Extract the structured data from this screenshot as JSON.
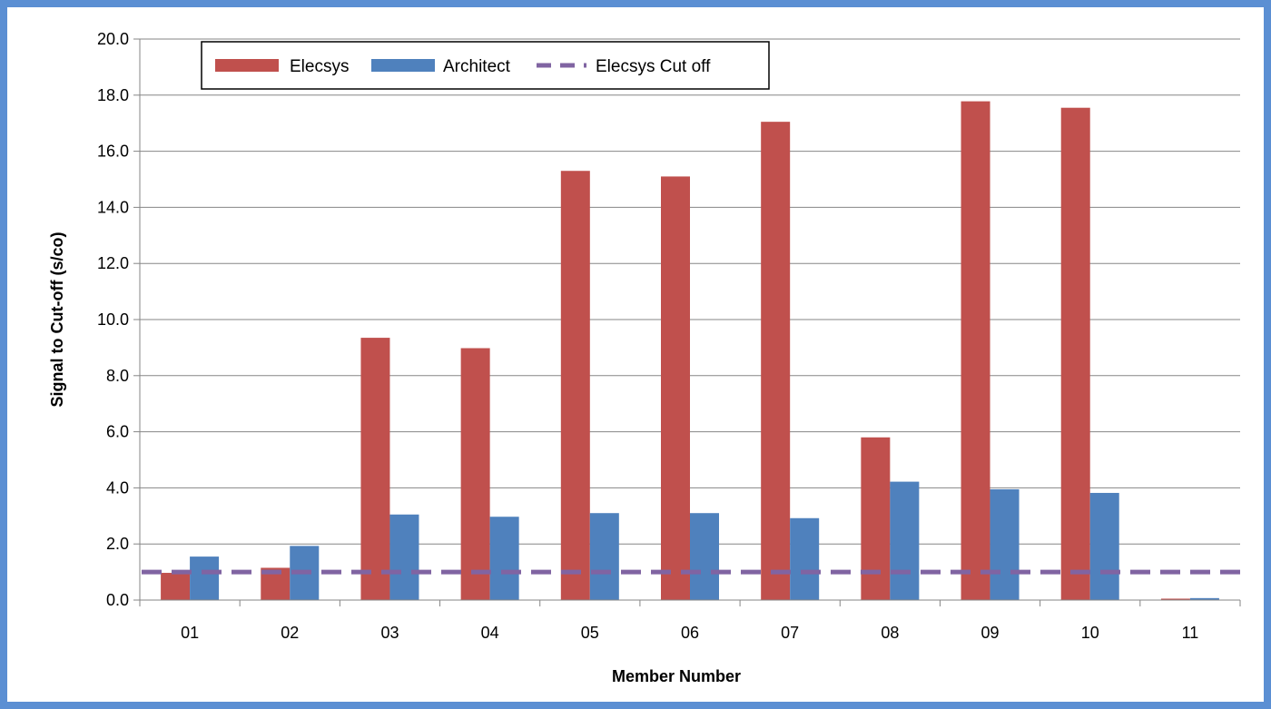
{
  "chart_data": {
    "type": "bar",
    "title": "",
    "xlabel": "Member Number",
    "ylabel": "Signal to Cut-off  (s/co)",
    "categories": [
      "01",
      "02",
      "03",
      "04",
      "05",
      "06",
      "07",
      "08",
      "09",
      "10",
      "11"
    ],
    "series": [
      {
        "name": "Elecsys",
        "color": "#c0504d",
        "values": [
          0.97,
          1.15,
          9.35,
          8.98,
          15.3,
          15.1,
          17.05,
          5.8,
          17.78,
          17.55,
          0.05
        ]
      },
      {
        "name": "Architect",
        "color": "#4f81bd",
        "values": [
          1.55,
          1.93,
          3.05,
          2.97,
          3.1,
          3.1,
          2.92,
          4.22,
          3.95,
          3.82,
          0.07
        ]
      }
    ],
    "reference_line": {
      "name": "Elecsys Cut off",
      "value": 1.0,
      "color": "#8064a2",
      "style": "dashed"
    },
    "ylim": [
      0,
      20
    ],
    "yticks": [
      "0.0",
      "2.0",
      "4.0",
      "6.0",
      "8.0",
      "10.0",
      "12.0",
      "14.0",
      "16.0",
      "18.0",
      "20.0"
    ],
    "grid": true,
    "legend_position": "top-left"
  },
  "frame_color": "#5b8fd3"
}
